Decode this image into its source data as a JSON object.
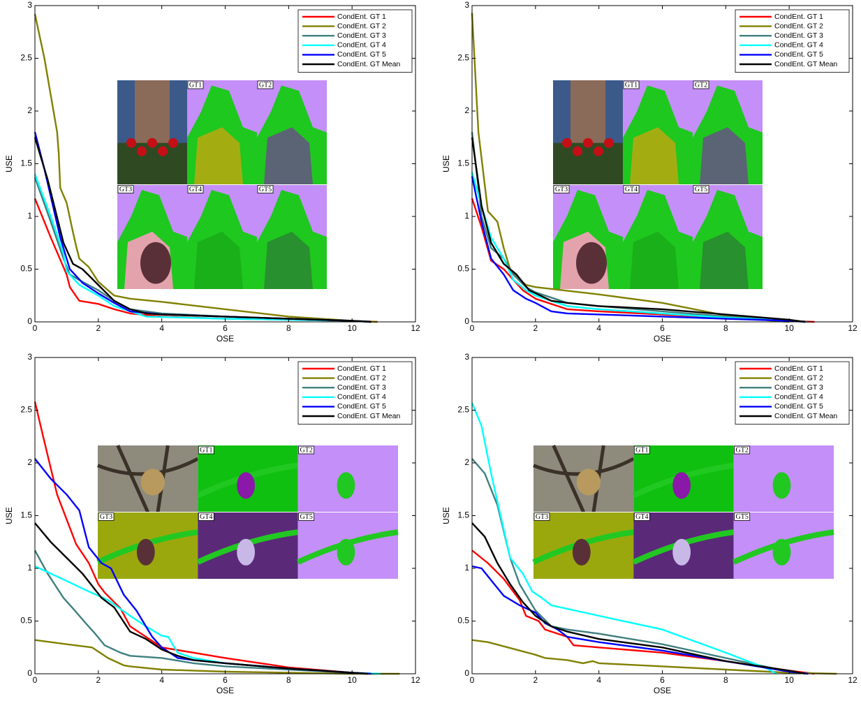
{
  "chart_data": [
    {
      "type": "line",
      "xlabel": "OSE",
      "ylabel": "USE",
      "xlim": [
        0,
        12
      ],
      "ylim": [
        0,
        3
      ],
      "xticks": [
        0,
        2,
        4,
        6,
        8,
        10,
        12
      ],
      "yticks": [
        0,
        0.5,
        1,
        1.5,
        2,
        2.5,
        3
      ],
      "legend": "upper right",
      "inset_labels": [
        "GT1",
        "GT2",
        "GT3",
        "GT4",
        "GT5"
      ],
      "series": [
        {
          "name": "CondEnt. GT 1",
          "color": "#ff0000",
          "x": [
            0,
            0.5,
            1,
            1.1,
            1.4,
            2,
            2.5,
            3,
            4,
            6,
            8,
            10,
            10.8
          ],
          "values": [
            1.17,
            0.8,
            0.45,
            0.33,
            0.2,
            0.17,
            0.12,
            0.08,
            0.05,
            0.03,
            0.02,
            0.01,
            0
          ]
        },
        {
          "name": "CondEnt. GT 2",
          "color": "#808000",
          "x": [
            0,
            0.3,
            0.7,
            0.75,
            0.8,
            1,
            1.2,
            1.3,
            1.4,
            1.7,
            2,
            2.5,
            3,
            4,
            6,
            8,
            10,
            10.8
          ],
          "values": [
            2.92,
            2.5,
            1.8,
            1.6,
            1.27,
            1.13,
            0.85,
            0.72,
            0.6,
            0.52,
            0.38,
            0.25,
            0.22,
            0.19,
            0.12,
            0.05,
            0.01,
            0
          ]
        },
        {
          "name": "CondEnt. GT 3",
          "color": "#3f7f7f",
          "x": [
            0,
            0.5,
            0.9,
            1.1,
            1.5,
            2,
            2.5,
            3,
            4,
            6,
            8,
            10,
            10.6
          ],
          "values": [
            1.37,
            0.95,
            0.6,
            0.45,
            0.38,
            0.3,
            0.2,
            0.12,
            0.08,
            0.05,
            0.03,
            0.01,
            0
          ]
        },
        {
          "name": "CondEnt. GT 4",
          "color": "#00ffff",
          "x": [
            0,
            0.5,
            0.9,
            1,
            1.4,
            2,
            2.5,
            3,
            3.5,
            6,
            8,
            10,
            10.5
          ],
          "values": [
            1.4,
            1.0,
            0.65,
            0.48,
            0.35,
            0.25,
            0.15,
            0.1,
            0.05,
            0.03,
            0.02,
            0.01,
            0
          ]
        },
        {
          "name": "CondEnt. GT 5",
          "color": "#0000ff",
          "x": [
            0,
            0.3,
            0.8,
            1.1,
            1.5,
            2,
            2.5,
            3,
            4,
            6,
            8,
            10,
            10.6
          ],
          "values": [
            1.8,
            1.45,
            0.8,
            0.5,
            0.37,
            0.27,
            0.18,
            0.1,
            0.07,
            0.05,
            0.03,
            0.01,
            0
          ]
        },
        {
          "name": "CondEnt. GT Mean",
          "color": "#000000",
          "x": [
            0,
            0.4,
            0.9,
            1.2,
            1.5,
            2,
            2.5,
            3,
            3.5,
            4,
            6,
            8,
            10,
            10.6
          ],
          "values": [
            1.75,
            1.35,
            0.75,
            0.55,
            0.5,
            0.35,
            0.2,
            0.12,
            0.08,
            0.07,
            0.05,
            0.03,
            0.01,
            0
          ]
        }
      ]
    },
    {
      "type": "line",
      "xlabel": "OSE",
      "ylabel": "USE",
      "xlim": [
        0,
        12
      ],
      "ylim": [
        0,
        3
      ],
      "xticks": [
        0,
        2,
        4,
        6,
        8,
        10,
        12
      ],
      "yticks": [
        0,
        0.5,
        1,
        1.5,
        2,
        2.5,
        3
      ],
      "legend": "upper right",
      "inset_labels": [
        "GT1",
        "GT2",
        "GT3",
        "GT4",
        "GT5"
      ],
      "series": [
        {
          "name": "CondEnt. GT 1",
          "color": "#ff0000",
          "x": [
            0,
            0.3,
            0.6,
            1,
            1.3,
            1.6,
            2,
            3,
            4,
            6,
            8,
            10,
            10.8
          ],
          "values": [
            1.17,
            0.9,
            0.58,
            0.5,
            0.4,
            0.3,
            0.22,
            0.12,
            0.1,
            0.07,
            0.04,
            0.01,
            0
          ]
        },
        {
          "name": "CondEnt. GT 2",
          "color": "#808000",
          "x": [
            0,
            0.2,
            0.5,
            0.8,
            1,
            1.2,
            1.5,
            1.7,
            2,
            4,
            6,
            8,
            9.5,
            10
          ],
          "values": [
            2.93,
            1.8,
            1.05,
            0.95,
            0.7,
            0.5,
            0.4,
            0.35,
            0.33,
            0.26,
            0.18,
            0.06,
            0.01,
            0
          ]
        },
        {
          "name": "CondEnt. GT 3",
          "color": "#3f7f7f",
          "x": [
            0,
            0.3,
            0.6,
            1,
            1.3,
            1.7,
            2,
            3,
            4,
            6,
            8,
            10,
            10.6
          ],
          "values": [
            1.8,
            1.0,
            0.7,
            0.6,
            0.45,
            0.33,
            0.28,
            0.18,
            0.15,
            0.1,
            0.05,
            0.01,
            0
          ]
        },
        {
          "name": "CondEnt. GT 4",
          "color": "#00ffff",
          "x": [
            0,
            0.3,
            0.6,
            1,
            1.3,
            1.7,
            2,
            3,
            4,
            6,
            8,
            10,
            10.5
          ],
          "values": [
            1.42,
            1.1,
            0.8,
            0.6,
            0.4,
            0.3,
            0.25,
            0.15,
            0.12,
            0.08,
            0.04,
            0.01,
            0
          ]
        },
        {
          "name": "CondEnt. GT 5",
          "color": "#0000ff",
          "x": [
            0,
            0.3,
            0.6,
            1,
            1.3,
            1.7,
            2,
            2.5,
            3,
            4,
            6,
            8,
            10,
            10.5
          ],
          "values": [
            1.38,
            0.95,
            0.6,
            0.45,
            0.3,
            0.22,
            0.18,
            0.1,
            0.08,
            0.07,
            0.05,
            0.03,
            0.01,
            0
          ]
        },
        {
          "name": "CondEnt. GT Mean",
          "color": "#000000",
          "x": [
            0,
            0.3,
            0.6,
            1,
            1.4,
            1.8,
            2.5,
            3,
            4,
            6,
            8,
            10,
            10.5
          ],
          "values": [
            1.75,
            1.1,
            0.75,
            0.55,
            0.45,
            0.3,
            0.2,
            0.18,
            0.15,
            0.12,
            0.07,
            0.02,
            0
          ]
        }
      ]
    },
    {
      "type": "line",
      "xlabel": "OSE",
      "ylabel": "USE",
      "xlim": [
        0,
        12
      ],
      "ylim": [
        0,
        3
      ],
      "xticks": [
        0,
        2,
        4,
        6,
        8,
        10,
        12
      ],
      "yticks": [
        0,
        0.5,
        1,
        1.5,
        2,
        2.5,
        3
      ],
      "legend": "upper right",
      "inset_labels": [
        "GT1",
        "GT2",
        "GT3",
        "GT4",
        "GT5"
      ],
      "series": [
        {
          "name": "CondEnt. GT 1",
          "color": "#ff0000",
          "x": [
            0,
            0.3,
            0.7,
            1.3,
            1.7,
            2,
            2.2,
            2.7,
            3,
            3.5,
            4,
            5,
            6,
            8,
            10,
            10.7
          ],
          "values": [
            2.58,
            2.2,
            1.7,
            1.23,
            1.05,
            0.85,
            0.77,
            0.62,
            0.45,
            0.35,
            0.25,
            0.2,
            0.15,
            0.06,
            0.01,
            0
          ]
        },
        {
          "name": "CondEnt. GT 2",
          "color": "#808000",
          "x": [
            0,
            1,
            1.8,
            2.3,
            2.8,
            3,
            4,
            6,
            8,
            10,
            11.5
          ],
          "values": [
            0.32,
            0.28,
            0.25,
            0.15,
            0.08,
            0.07,
            0.04,
            0.02,
            0.01,
            0,
            0
          ]
        },
        {
          "name": "CondEnt. GT 3",
          "color": "#3f7f7f",
          "x": [
            0,
            0.4,
            0.9,
            1.2,
            1.6,
            1.9,
            2.2,
            2.7,
            3,
            4,
            5,
            6,
            8,
            10,
            10.5
          ],
          "values": [
            1.17,
            0.95,
            0.72,
            0.62,
            0.48,
            0.38,
            0.27,
            0.2,
            0.17,
            0.15,
            0.1,
            0.07,
            0.04,
            0.01,
            0
          ]
        },
        {
          "name": "CondEnt. GT 4",
          "color": "#00ffff",
          "x": [
            0,
            0.5,
            1,
            1.7,
            2.3,
            3,
            3.5,
            4,
            4.2,
            4.5,
            5,
            6,
            8,
            10,
            10.9
          ],
          "values": [
            1.02,
            0.95,
            0.88,
            0.78,
            0.7,
            0.55,
            0.45,
            0.36,
            0.35,
            0.2,
            0.15,
            0.1,
            0.05,
            0.01,
            0
          ]
        },
        {
          "name": "CondEnt. GT 5",
          "color": "#0000ff",
          "x": [
            0,
            0.5,
            1,
            1.4,
            1.7,
            2.1,
            2.4,
            2.8,
            3.2,
            3.7,
            4,
            4.5,
            5,
            6,
            8,
            10,
            10.6
          ],
          "values": [
            2.04,
            1.85,
            1.7,
            1.55,
            1.2,
            1.05,
            1.0,
            0.75,
            0.6,
            0.35,
            0.25,
            0.15,
            0.13,
            0.1,
            0.05,
            0.01,
            0
          ]
        },
        {
          "name": "CondEnt. GT Mean",
          "color": "#000000",
          "x": [
            0,
            0.5,
            1,
            1.5,
            2.1,
            2.5,
            3,
            3.5,
            4,
            4.5,
            5,
            6,
            8,
            10,
            10.5
          ],
          "values": [
            1.43,
            1.25,
            1.1,
            0.95,
            0.72,
            0.63,
            0.4,
            0.33,
            0.23,
            0.17,
            0.13,
            0.1,
            0.05,
            0.01,
            0
          ]
        }
      ]
    },
    {
      "type": "line",
      "xlabel": "OSE",
      "ylabel": "USE",
      "xlim": [
        0,
        12
      ],
      "ylim": [
        0,
        3
      ],
      "xticks": [
        0,
        2,
        4,
        6,
        8,
        10,
        12
      ],
      "yticks": [
        0,
        0.5,
        1,
        1.5,
        2,
        2.5,
        3
      ],
      "legend": "upper right",
      "inset_labels": [
        "GT1",
        "GT2",
        "GT3",
        "GT4",
        "GT5"
      ],
      "series": [
        {
          "name": "CondEnt. GT 1",
          "color": "#ff0000",
          "x": [
            0,
            0.5,
            1,
            1.5,
            1.7,
            2.1,
            2.3,
            3,
            3.2,
            4,
            6,
            8,
            10,
            10.8
          ],
          "values": [
            1.17,
            1.05,
            0.9,
            0.7,
            0.55,
            0.5,
            0.42,
            0.35,
            0.27,
            0.25,
            0.2,
            0.12,
            0.03,
            0
          ]
        },
        {
          "name": "CondEnt. GT 2",
          "color": "#808000",
          "x": [
            0,
            0.5,
            1,
            2,
            2.3,
            3,
            3.5,
            3.8,
            4,
            6,
            8,
            10,
            11.5
          ],
          "values": [
            0.32,
            0.3,
            0.26,
            0.18,
            0.15,
            0.13,
            0.1,
            0.12,
            0.1,
            0.07,
            0.04,
            0.01,
            0
          ]
        },
        {
          "name": "CondEnt. GT 3",
          "color": "#3f7f7f",
          "x": [
            0,
            0.4,
            0.8,
            1.2,
            1.5,
            2,
            2.5,
            3,
            4,
            6,
            8,
            10,
            10.6
          ],
          "values": [
            2.04,
            1.9,
            1.6,
            1.1,
            0.85,
            0.6,
            0.45,
            0.42,
            0.38,
            0.28,
            0.15,
            0.02,
            0
          ]
        },
        {
          "name": "CondEnt. GT 4",
          "color": "#00ffff",
          "x": [
            0,
            0.3,
            0.6,
            0.9,
            1.2,
            1.6,
            1.9,
            2.2,
            2.5,
            4,
            6,
            8,
            9.3,
            9.6
          ],
          "values": [
            2.57,
            2.35,
            1.9,
            1.5,
            1.1,
            0.95,
            0.78,
            0.72,
            0.65,
            0.55,
            0.42,
            0.2,
            0.05,
            0
          ]
        },
        {
          "name": "CondEnt. GT 5",
          "color": "#0000ff",
          "x": [
            0,
            0.3,
            0.7,
            1,
            1.5,
            2,
            2.3,
            2.7,
            3,
            4,
            6,
            8,
            10,
            10.6
          ],
          "values": [
            1.02,
            1.0,
            0.85,
            0.74,
            0.65,
            0.58,
            0.48,
            0.42,
            0.35,
            0.3,
            0.22,
            0.12,
            0.02,
            0
          ]
        },
        {
          "name": "CondEnt. GT Mean",
          "color": "#000000",
          "x": [
            0,
            0.4,
            0.8,
            1.2,
            1.6,
            2,
            2.5,
            3,
            4,
            6,
            8,
            10,
            10.5
          ],
          "values": [
            1.43,
            1.3,
            1.05,
            0.85,
            0.68,
            0.55,
            0.45,
            0.4,
            0.33,
            0.25,
            0.12,
            0.03,
            0
          ]
        }
      ]
    }
  ]
}
